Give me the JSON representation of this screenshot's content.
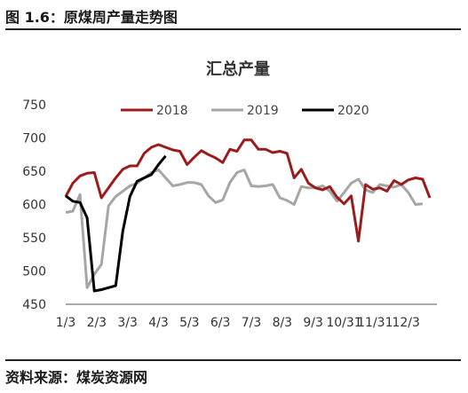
{
  "figure_title": "图 1.6：原煤周产量走势图",
  "source_text": "资料来源：煤炭资源网",
  "colors": {
    "2018": "#9b1c1c",
    "2019": "#a6a6a6",
    "2020": "#000000"
  },
  "chart_data": {
    "type": "line",
    "title": "汇总产量",
    "xlabel": "",
    "ylabel": "",
    "ylim": [
      450,
      750
    ],
    "yticks": [
      450,
      500,
      550,
      600,
      650,
      700,
      750
    ],
    "x_tick_labels": [
      "1/3",
      "2/3",
      "3/3",
      "4/3",
      "5/3",
      "6/3",
      "7/3",
      "8/3",
      "9/3",
      "10/31",
      "11/31",
      "12/3"
    ],
    "x_range_weeks": [
      0,
      52
    ],
    "grid": false,
    "legend_position": "top",
    "series": [
      {
        "name": "2018",
        "x": [
          0,
          1,
          2,
          3,
          4,
          5,
          6,
          7,
          8,
          9,
          10,
          11,
          12,
          13,
          14,
          15,
          16,
          17,
          18,
          19,
          20,
          21,
          22,
          23,
          24,
          25,
          26,
          27,
          28,
          29,
          30,
          31,
          32,
          33,
          34,
          35,
          36,
          37,
          38,
          39,
          40,
          41,
          42,
          43,
          44,
          45,
          46,
          47,
          48,
          49,
          50,
          51
        ],
        "values": [
          612,
          632,
          643,
          647,
          648,
          610,
          625,
          640,
          653,
          658,
          658,
          677,
          686,
          690,
          686,
          682,
          680,
          660,
          671,
          681,
          675,
          670,
          663,
          683,
          680,
          697,
          697,
          683,
          683,
          678,
          680,
          677,
          640,
          653,
          632,
          625,
          622,
          627,
          611,
          601,
          613,
          545,
          630,
          623,
          625,
          620,
          636,
          630,
          637,
          640,
          638,
          610
        ]
      },
      {
        "name": "2019",
        "x": [
          0,
          1,
          2,
          3,
          4,
          5,
          6,
          7,
          8,
          9,
          10,
          11,
          12,
          13,
          14,
          15,
          16,
          17,
          18,
          19,
          20,
          21,
          22,
          23,
          24,
          25,
          26,
          27,
          28,
          29,
          30,
          31,
          32,
          33,
          34,
          35,
          36,
          37,
          38,
          39,
          40,
          41,
          42,
          43,
          44,
          45,
          46,
          47,
          48,
          49,
          50
        ],
        "values": [
          588,
          590,
          615,
          475,
          495,
          510,
          598,
          612,
          620,
          628,
          632,
          640,
          648,
          652,
          640,
          628,
          630,
          633,
          633,
          630,
          613,
          603,
          607,
          633,
          648,
          652,
          628,
          627,
          628,
          630,
          610,
          606,
          600,
          627,
          625,
          625,
          628,
          620,
          605,
          618,
          632,
          638,
          622,
          618,
          630,
          628,
          626,
          630,
          618,
          600,
          601
        ]
      },
      {
        "name": "2020",
        "x": [
          0,
          1,
          2,
          3,
          4,
          5,
          6,
          7,
          8,
          9,
          10,
          11,
          12,
          13,
          14
        ],
        "values": [
          613,
          605,
          603,
          580,
          470,
          472,
          475,
          478,
          560,
          612,
          635,
          640,
          645,
          660,
          673
        ]
      }
    ]
  }
}
